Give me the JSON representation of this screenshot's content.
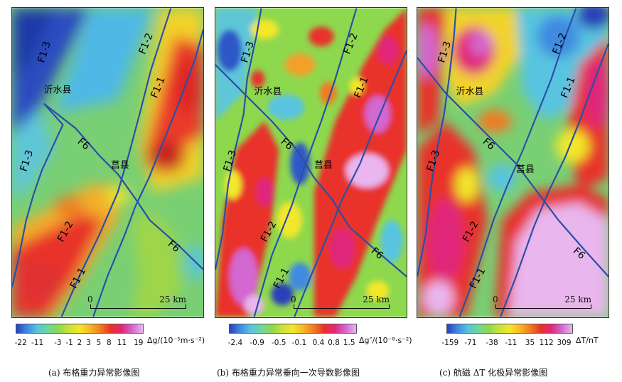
{
  "panels": [
    {
      "id": "a",
      "county_label": "沂水县",
      "town_label": "莒县",
      "faults": [
        "F1-3",
        "F1-2",
        "F1-1",
        "F6"
      ],
      "scale": {
        "start": "0",
        "end": "25 km"
      },
      "colorbar": {
        "ticks": [
          "-22",
          "-11",
          "-3",
          "-1",
          "2",
          "3",
          "5",
          "8",
          "11",
          "19"
        ],
        "unit": "Δg/(10⁻⁵m·s⁻²)"
      },
      "caption": "(a) 布格重力异常影像图"
    },
    {
      "id": "b",
      "county_label": "沂水县",
      "town_label": "莒县",
      "faults": [
        "F1-3",
        "F1-2",
        "F1-1",
        "F6"
      ],
      "scale": {
        "start": "0",
        "end": "25 km"
      },
      "colorbar": {
        "ticks": [
          "-2.4",
          "-0.9",
          "-0.5",
          "-0.1",
          "0.4",
          "0.8",
          "1.5"
        ],
        "unit": "Δg″/(10⁻⁸·s⁻²)"
      },
      "caption": "(b) 布格重力异常垂向一次导数影像图"
    },
    {
      "id": "c",
      "county_label": "沂水县",
      "town_label": "莒县",
      "faults": [
        "F1-3",
        "F1-2",
        "F1-1",
        "F6"
      ],
      "scale": {
        "start": "0",
        "end": "25 km"
      },
      "colorbar": {
        "ticks": [
          "-159",
          "-71",
          "-38",
          "-11",
          "35",
          "112",
          "309"
        ],
        "unit": "ΔT/nT"
      },
      "caption": "(c) 航磁 ΔT 化极异常影像图"
    }
  ],
  "colors": {
    "fault_line": "#2a4fa8",
    "low": "#2a3fb8",
    "mid": "#8ed84e",
    "high": "#e8302a",
    "peak": "#e9b6ee"
  }
}
